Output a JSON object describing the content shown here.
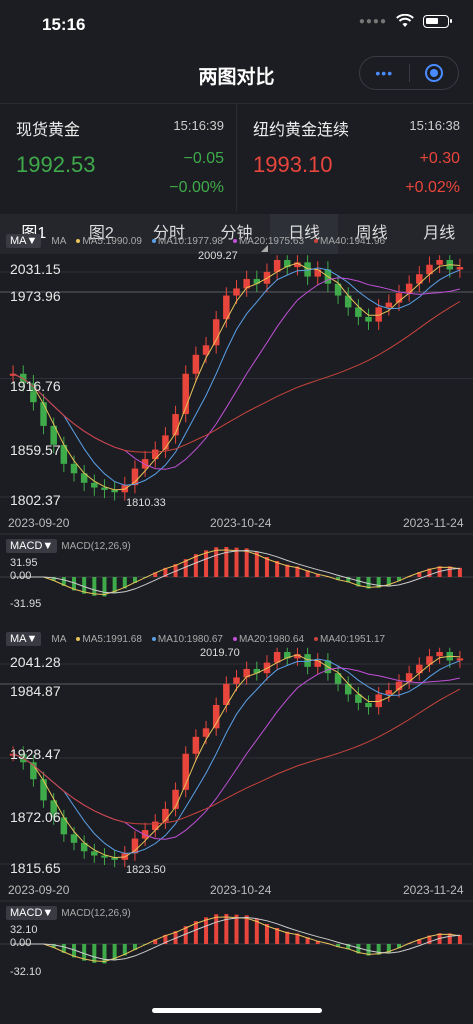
{
  "status": {
    "time": "15:16"
  },
  "nav": {
    "title": "两图对比",
    "more_label": "•••"
  },
  "quotes": [
    {
      "name": "现货黄金",
      "time": "15:16:39",
      "price": "1992.53",
      "change": "−0.05",
      "pct": "−0.00%",
      "color": "#3faa4a"
    },
    {
      "name": "纽约黄金连续",
      "time": "15:16:38",
      "price": "1993.10",
      "change": "+0.30",
      "pct": "+0.02%",
      "color": "#e8453c"
    }
  ],
  "tabs": [
    "图1",
    "图2",
    "分时",
    "分钟",
    "日线",
    "周线",
    "月线"
  ],
  "colors": {
    "up": "#e8453c",
    "down": "#3faa4a",
    "ma5": "#e8c35a",
    "ma10": "#5aa0e8",
    "ma20": "#c050d8",
    "ma40": "#c8443c",
    "bg": "#1c1d22"
  },
  "charts": [
    {
      "ma_button": "MA▼",
      "ma_title": "MA",
      "ma5": "MA5:1990.09",
      "ma10": "MA10:1977.98",
      "ma20": "MA20:1975.63",
      "ma40": "MA40:1941.96",
      "price_labels": [
        "2031.15",
        "1973.96",
        "1916.76",
        "1859.57",
        "1802.37"
      ],
      "high_mark": "2009.27",
      "low_mark": "1810.33",
      "dates": [
        "2023-09-20",
        "2023-10-24",
        "2023-11-24"
      ],
      "macd_button": "MACD▼",
      "macd_title": "MACD(12,26,9)",
      "macd_labels": [
        "31.95",
        "0.00",
        "-31.95"
      ]
    },
    {
      "ma_button": "MA▼",
      "ma_title": "MA",
      "ma5": "MA5:1991.68",
      "ma10": "MA10:1980.67",
      "ma20": "MA20:1980.64",
      "ma40": "MA40:1951.17",
      "price_labels": [
        "2041.28",
        "1984.87",
        "1928.47",
        "1872.06",
        "1815.65"
      ],
      "high_mark": "2019.70",
      "low_mark": "1823.50",
      "dates": [
        "2023-09-20",
        "2023-10-24",
        "2023-11-24"
      ],
      "macd_button": "MACD▼",
      "macd_title": "MACD(12,26,9)",
      "macd_labels": [
        "32.10",
        "0.00",
        "-32.10"
      ]
    }
  ]
}
